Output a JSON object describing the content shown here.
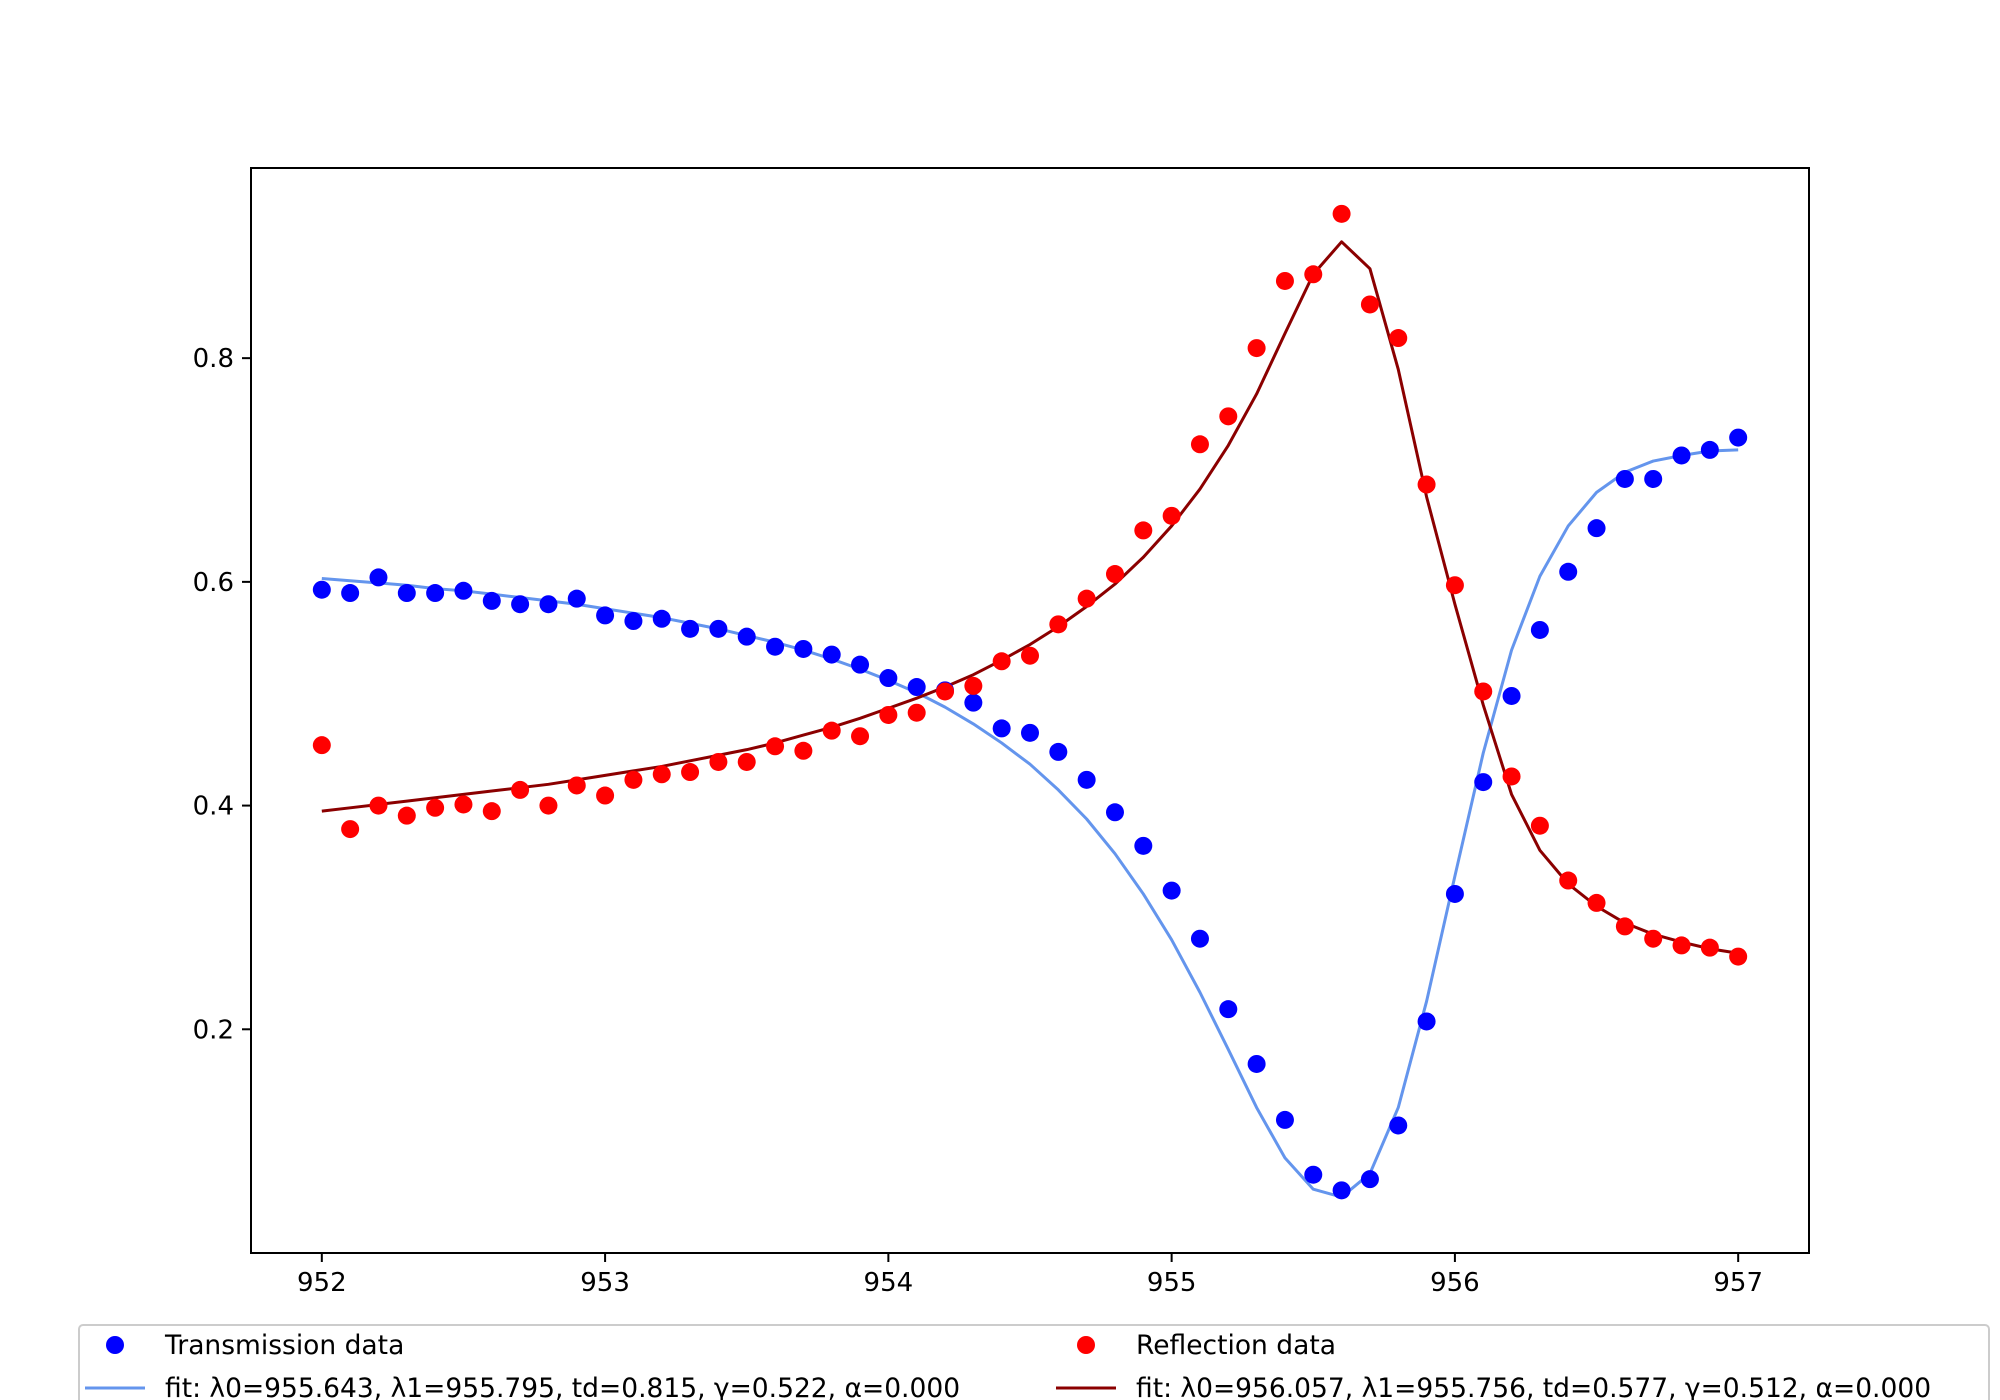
{
  "chart_data": {
    "type": "scatter",
    "title": "",
    "xlabel": "",
    "ylabel": "",
    "xlim": [
      951.75,
      957.25
    ],
    "ylim": [
      0.0,
      0.97
    ],
    "xticks": [
      952,
      953,
      954,
      955,
      956,
      957
    ],
    "yticks": [
      0.2,
      0.4,
      0.6,
      0.8
    ],
    "xtick_labels": [
      "952",
      "953",
      "954",
      "955",
      "956",
      "957"
    ],
    "ytick_labels": [
      "0.2",
      "0.4",
      "0.6",
      "0.8"
    ],
    "grid": false,
    "legend_position": "bottom (below axes, two columns)",
    "colors": {
      "transmission_data": "#0000ff",
      "transmission_fit": "#6495ed",
      "reflection_data": "#ff0000",
      "reflection_fit": "#8b0000"
    },
    "x": [
      952.0,
      952.1,
      952.2,
      952.3,
      952.4,
      952.5,
      952.6,
      952.7,
      952.8,
      952.9,
      953.0,
      953.1,
      953.2,
      953.3,
      953.4,
      953.5,
      953.6,
      953.7,
      953.8,
      953.9,
      954.0,
      954.1,
      954.2,
      954.3,
      954.4,
      954.5,
      954.6,
      954.7,
      954.8,
      954.9,
      955.0,
      955.1,
      955.2,
      955.3,
      955.4,
      955.5,
      955.6,
      955.7,
      955.8,
      955.9,
      956.0,
      956.1,
      956.2,
      956.3,
      956.4,
      956.5,
      956.6,
      956.7,
      956.8,
      956.9,
      957.0
    ],
    "series": [
      {
        "name": "Transmission data",
        "kind": "scatter",
        "values": [
          0.593,
          0.59,
          0.604,
          0.59,
          0.59,
          0.592,
          0.583,
          0.58,
          0.58,
          0.585,
          0.57,
          0.565,
          0.567,
          0.558,
          0.558,
          0.551,
          0.542,
          0.54,
          0.535,
          0.526,
          0.514,
          0.506,
          0.503,
          0.492,
          0.469,
          0.465,
          0.448,
          0.423,
          0.394,
          0.364,
          0.324,
          0.281,
          0.218,
          0.169,
          0.119,
          0.07,
          0.056,
          0.066,
          0.114,
          0.207,
          0.321,
          0.421,
          0.498,
          0.557,
          0.609,
          0.648,
          0.692,
          0.692,
          0.713,
          0.718,
          0.729
        ]
      },
      {
        "name": "fit: λ0=955.643, λ1=955.795, td=0.815, γ=0.522, α=0.000",
        "kind": "line",
        "values": [
          0.603,
          0.601,
          0.599,
          0.597,
          0.594,
          0.592,
          0.589,
          0.586,
          0.583,
          0.58,
          0.576,
          0.572,
          0.568,
          0.563,
          0.558,
          0.552,
          0.546,
          0.539,
          0.531,
          0.522,
          0.512,
          0.501,
          0.488,
          0.473,
          0.456,
          0.437,
          0.414,
          0.388,
          0.357,
          0.321,
          0.28,
          0.233,
          0.182,
          0.13,
          0.085,
          0.057,
          0.05,
          0.071,
          0.13,
          0.225,
          0.337,
          0.447,
          0.539,
          0.605,
          0.65,
          0.68,
          0.698,
          0.708,
          0.713,
          0.717,
          0.718
        ]
      },
      {
        "name": "Reflection data",
        "kind": "scatter",
        "values": [
          0.454,
          0.379,
          0.4,
          0.391,
          0.398,
          0.401,
          0.395,
          0.414,
          0.4,
          0.418,
          0.409,
          0.423,
          0.428,
          0.43,
          0.439,
          0.439,
          0.453,
          0.449,
          0.467,
          0.462,
          0.481,
          0.483,
          0.502,
          0.507,
          0.529,
          0.534,
          0.562,
          0.585,
          0.607,
          0.646,
          0.659,
          0.723,
          0.748,
          0.809,
          0.869,
          0.875,
          0.929,
          0.848,
          0.818,
          0.687,
          0.597,
          0.502,
          0.426,
          0.382,
          0.333,
          0.313,
          0.292,
          0.281,
          0.275,
          0.273,
          0.265
        ]
      },
      {
        "name": "fit: λ0=956.057, λ1=955.756, td=0.577, γ=0.512, α=0.000",
        "kind": "line",
        "values": [
          0.395,
          0.398,
          0.401,
          0.404,
          0.407,
          0.41,
          0.413,
          0.416,
          0.419,
          0.423,
          0.427,
          0.431,
          0.435,
          0.44,
          0.445,
          0.45,
          0.456,
          0.463,
          0.47,
          0.478,
          0.487,
          0.496,
          0.506,
          0.517,
          0.53,
          0.544,
          0.56,
          0.578,
          0.598,
          0.622,
          0.65,
          0.683,
          0.722,
          0.768,
          0.822,
          0.875,
          0.904,
          0.88,
          0.79,
          0.676,
          0.58,
          0.49,
          0.41,
          0.36,
          0.33,
          0.31,
          0.295,
          0.285,
          0.278,
          0.272,
          0.268
        ]
      }
    ]
  }
}
